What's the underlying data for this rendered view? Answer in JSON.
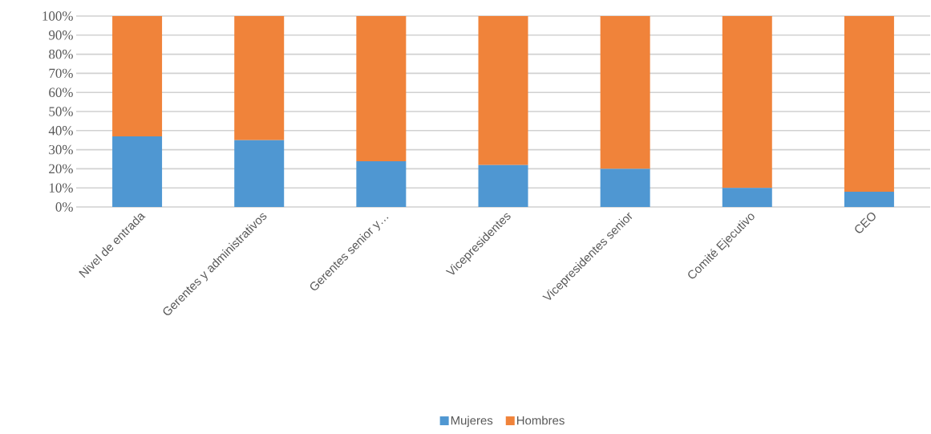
{
  "chart_data": {
    "type": "bar",
    "stacked": true,
    "categories": [
      "Nivel de entrada",
      "Gerentes y administrativos",
      "Gerentes  senior y…",
      "Vicepresidentes",
      "Vicepresidentes senior",
      "Comité Ejecutivo",
      "CEO"
    ],
    "series": [
      {
        "name": "Mujeres",
        "color": "#4f97d2",
        "values": [
          37,
          35,
          24,
          22,
          20,
          10,
          8
        ]
      },
      {
        "name": "Hombres",
        "color": "#f0833a",
        "values": [
          63,
          65,
          76,
          78,
          80,
          90,
          92
        ]
      }
    ],
    "ylim": [
      0,
      100
    ],
    "yticks": [
      {
        "value": 0,
        "label": "0%"
      },
      {
        "value": 10,
        "label": "10%"
      },
      {
        "value": 20,
        "label": "20%"
      },
      {
        "value": 30,
        "label": "30%"
      },
      {
        "value": 40,
        "label": "40%"
      },
      {
        "value": 50,
        "label": "50%"
      },
      {
        "value": 60,
        "label": "60%"
      },
      {
        "value": 70,
        "label": "70%"
      },
      {
        "value": 80,
        "label": "80%"
      },
      {
        "value": 90,
        "label": "90%"
      },
      {
        "value": 100,
        "label": "100%"
      }
    ],
    "grid": "y",
    "legend": "bottom"
  }
}
